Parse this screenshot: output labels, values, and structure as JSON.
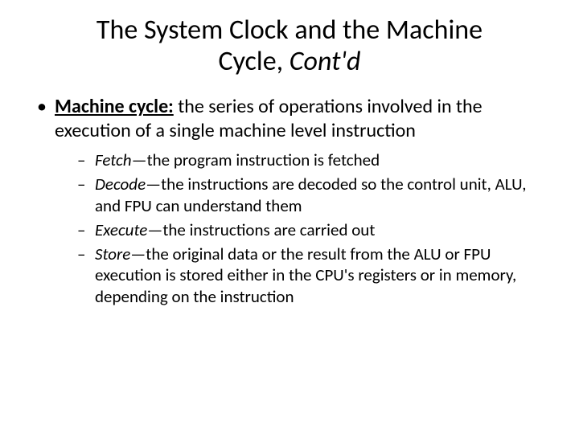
{
  "title": {
    "line1": "The System Clock and the Machine",
    "line2_a": "Cycle, ",
    "line2_b_italic": "Cont'd"
  },
  "main": {
    "term": "Machine cycle:",
    "definition": " the series of operations involved in the execution of a single machine level instruction",
    "steps": [
      {
        "name": "Fetch",
        "desc": "—the program instruction is fetched"
      },
      {
        "name": "Decode",
        "desc": "—the instructions are decoded so the control unit, ALU, and FPU can understand them"
      },
      {
        "name": "Execute",
        "desc": "—the instructions are carried out"
      },
      {
        "name": "Store",
        "desc": "—the original data or the result from the ALU or FPU execution is stored either in the CPU's registers or in memory, depending on the instruction"
      }
    ]
  },
  "style": {
    "background": "#ffffff",
    "text_color": "#000000",
    "title_fontsize": 34,
    "body_fontsize": 24,
    "sub_fontsize": 21,
    "font_family": "Calibri"
  }
}
